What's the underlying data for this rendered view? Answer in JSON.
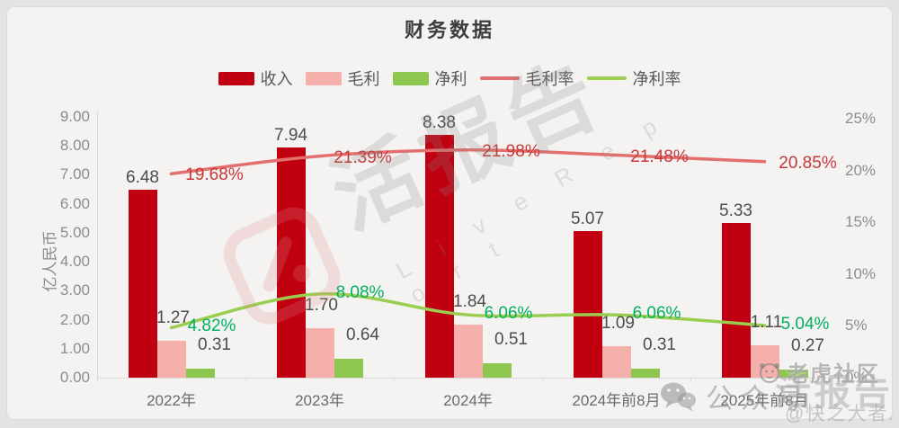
{
  "page": {
    "title": "财务数据"
  },
  "legend": [
    {
      "label": "收入",
      "type": "rect",
      "color": "#c00010"
    },
    {
      "label": "毛利",
      "type": "rect",
      "color": "#f6b0ac"
    },
    {
      "label": "净利",
      "type": "rect",
      "color": "#8dc74f"
    },
    {
      "label": "毛利率",
      "type": "line",
      "color": "#e2706e"
    },
    {
      "label": "净利率",
      "type": "line",
      "color": "#9acd50"
    }
  ],
  "chart_data": {
    "type": "bar",
    "subtype": "grouped-bars-with-lines",
    "title": "财务数据",
    "categories": [
      "2022年",
      "2023年",
      "2024年",
      "2024年前8月",
      "2025年前8月"
    ],
    "bar_series": [
      {
        "key": "revenue",
        "name": "收入",
        "color": "#c00010",
        "values": [
          6.48,
          7.94,
          8.38,
          5.07,
          5.33
        ]
      },
      {
        "key": "gross-profit",
        "name": "毛利",
        "color": "#f6b0ac",
        "values": [
          1.27,
          1.7,
          1.84,
          1.09,
          1.11
        ]
      },
      {
        "key": "net-profit",
        "name": "净利",
        "color": "#8dc74f",
        "values": [
          0.31,
          0.64,
          0.51,
          0.31,
          0.27
        ]
      }
    ],
    "line_series": [
      {
        "key": "gross-margin",
        "name": "毛利率",
        "color": "#e2706e",
        "label_color": "#c5393b",
        "values": [
          19.68,
          21.39,
          21.98,
          21.48,
          20.85
        ],
        "labels": [
          "19.68%",
          "21.39%",
          "21.98%",
          "21.48%",
          "20.85%"
        ]
      },
      {
        "key": "net-margin",
        "name": "净利率",
        "color": "#9acd50",
        "label_color": "#00b061",
        "values": [
          4.82,
          8.08,
          6.06,
          6.06,
          5.04
        ],
        "labels": [
          "4.82%",
          "8.08%",
          "6.06%",
          "6.06%",
          "5.04%"
        ]
      }
    ],
    "left_axis": {
      "label": "亿人民币",
      "min": 0,
      "max": 9,
      "ticks": [
        "0.00",
        "1.00",
        "2.00",
        "3.00",
        "4.00",
        "5.00",
        "6.00",
        "7.00",
        "8.00",
        "9.00"
      ]
    },
    "right_axis": {
      "min": 0,
      "max": 25,
      "ticks": [
        "0%",
        "5%",
        "10%",
        "15%",
        "20%",
        "25%"
      ]
    },
    "grid": "off",
    "legend_position": "top"
  },
  "watermarks": {
    "center_text": "活报告",
    "center_subtext": "L i v e R e p o r t",
    "wechat_label": "公众号",
    "tiger_label": "老虎社区",
    "brand_label": "活报告",
    "handle_label": "@快之大者."
  }
}
